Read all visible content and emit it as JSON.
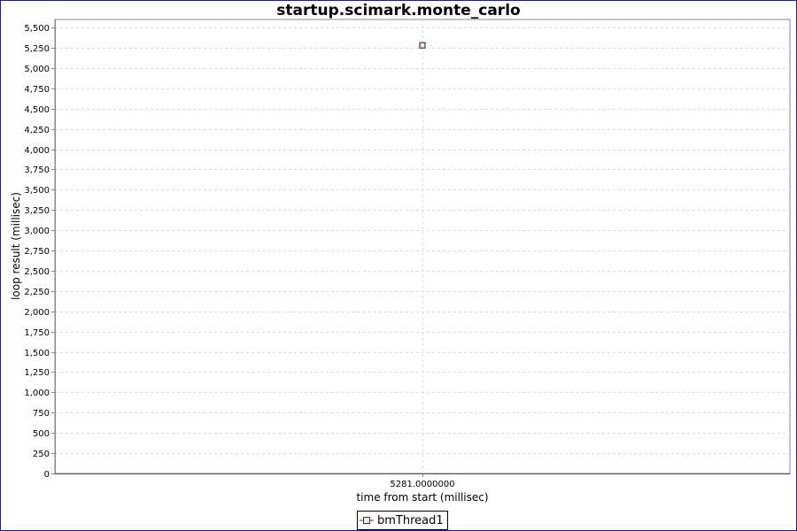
{
  "chart_data": {
    "type": "scatter",
    "title": "startup.scimark.monte_carlo",
    "xlabel": "time from start (millisec)",
    "ylabel": "loop result (millisec)",
    "ylim": [
      0,
      5600
    ],
    "yticks": [
      0,
      250,
      500,
      750,
      1000,
      1250,
      1500,
      1750,
      2000,
      2250,
      2500,
      2750,
      3000,
      3250,
      3500,
      3750,
      4000,
      4250,
      4500,
      4750,
      5000,
      5250,
      5500
    ],
    "xtick_labels": [
      "5281.0000000"
    ],
    "grid": true,
    "legend_placement": "bottom",
    "series": [
      {
        "name": "bmThread1",
        "marker": "square",
        "color": "#5a2a2a",
        "fill": "#e0f0ec",
        "points": [
          {
            "x": 5281,
            "y": 5281
          }
        ]
      }
    ]
  }
}
